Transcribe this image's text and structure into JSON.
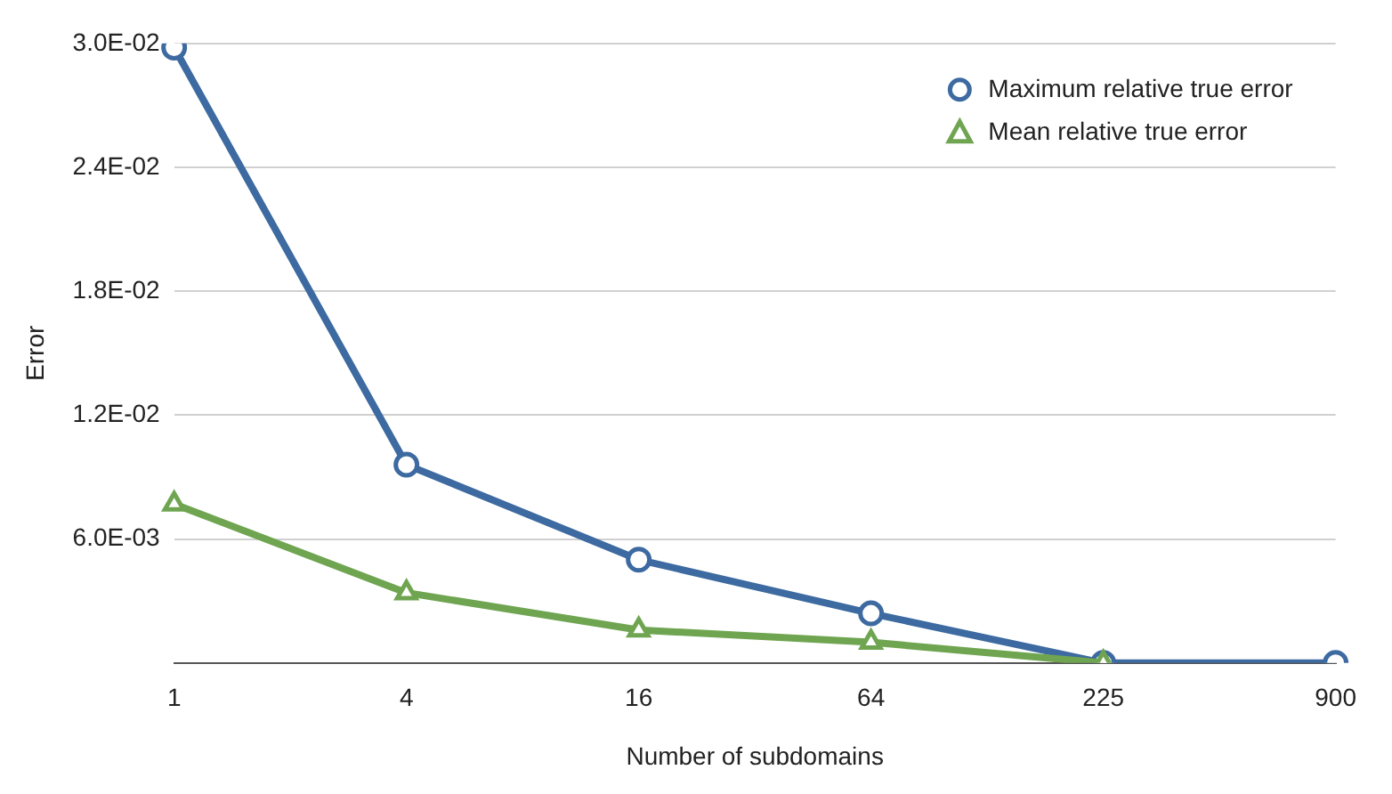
{
  "chart_data": {
    "type": "line",
    "xlabel": "Number of subdomains",
    "ylabel": "Error",
    "categories": [
      "1",
      "4",
      "16",
      "64",
      "225",
      "900"
    ],
    "series": [
      {
        "name": "Maximum relative true error",
        "color": "#3d6aa0",
        "marker": "circle",
        "values": [
          0.0298,
          0.0096,
          0.005,
          0.0024,
          0,
          0
        ]
      },
      {
        "name": "Mean relative true error",
        "color": "#6fa550",
        "marker": "triangle",
        "values": [
          0.0077,
          0.0034,
          0.0016,
          0.001,
          0,
          null
        ]
      }
    ],
    "ylim": [
      0,
      0.03
    ],
    "yticks": [
      {
        "value": 0,
        "label": null
      },
      {
        "value": 0.006,
        "label": "6.0E-03"
      },
      {
        "value": 0.012,
        "label": "1.2E-02"
      },
      {
        "value": 0.018,
        "label": "1.8E-02"
      },
      {
        "value": 0.024,
        "label": "2.4E-02"
      },
      {
        "value": 0.03,
        "label": "3.0E-02"
      }
    ],
    "grid": "y",
    "legend": "top right",
    "line_style": "solid"
  }
}
